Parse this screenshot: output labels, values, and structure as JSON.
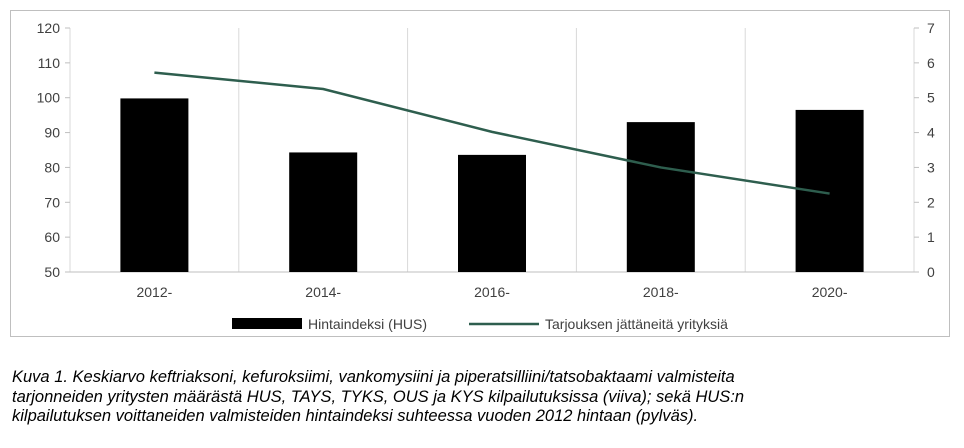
{
  "chart_data": {
    "type": "bar+line",
    "categories": [
      "2012-",
      "2014-",
      "2016-",
      "2018-",
      "2020-"
    ],
    "series": [
      {
        "name": "Hintaindeksi (HUS)",
        "type": "bar",
        "axis": "left",
        "values": [
          99.8,
          84.3,
          83.6,
          93.0,
          96.5
        ],
        "color": "#000000"
      },
      {
        "name": "Tarjouksen jättäneitä yrityksiä",
        "type": "line",
        "axis": "right",
        "values": [
          5.72,
          5.25,
          4.02,
          3.0,
          2.25
        ],
        "color": "#2e5e4e"
      }
    ],
    "y_left": {
      "ylim": [
        50,
        120
      ],
      "ticks": [
        50,
        60,
        70,
        80,
        90,
        100,
        110,
        120
      ]
    },
    "y_right": {
      "ylim": [
        0,
        7
      ],
      "ticks": [
        0,
        1,
        2,
        3,
        4,
        5,
        6,
        7
      ]
    },
    "grid": "vertical",
    "legend": "bottom"
  },
  "caption": {
    "line1": "Kuva 1. Keskiarvo keftriaksoni, kefuroksiimi, vankomysiini ja piperatsilliini/tatsobaktaami valmisteita",
    "line2": "tarjonneiden yritysten määrästä HUS, TAYS, TYKS, OUS ja KYS kilpailutuksissa (viiva); sekä HUS:n",
    "line3": "kilpailutuksen voittaneiden valmisteiden hintaindeksi suhteessa vuoden 2012 hintaan (pylväs)."
  }
}
